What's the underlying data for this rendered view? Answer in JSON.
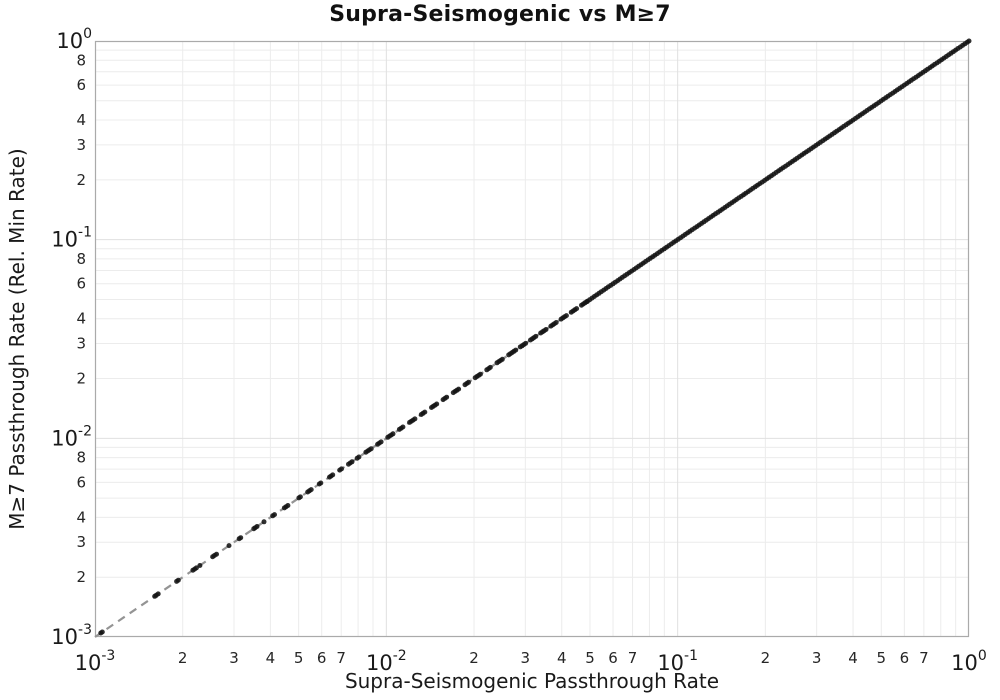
{
  "chart_data": {
    "type": "scatter",
    "title": "Supra-Seismogenic vs M≥7",
    "xlabel": "Supra-Seismogenic Passthrough Rate",
    "ylabel": "M≥7 Passthrough Rate (Rel. Min Rate)",
    "x_scale": "log",
    "y_scale": "log",
    "xlim": [
      0.001,
      1.0
    ],
    "ylim": [
      0.001,
      1.0
    ],
    "grid": true,
    "legend": "none",
    "relation": "y = x for every point (all markers lie on the 1:1 identity line)",
    "x_major_tick_labels": [
      "10^-3",
      "10^-2",
      "10^-1",
      "10^0"
    ],
    "y_major_tick_labels": [
      "10^0",
      "10^-1",
      "10^-2",
      "10^-3"
    ],
    "x_major_decades": [
      -3,
      -2,
      -1,
      0
    ],
    "y_major_decades": [
      0,
      -1,
      -2,
      -3
    ],
    "x_minor_labeled_subs": [
      2,
      3,
      4,
      5,
      6,
      7
    ],
    "y_minor_labeled_subs": [
      8,
      6,
      4,
      3,
      2
    ],
    "minor_grid_subs": [
      2,
      3,
      4,
      5,
      6,
      7,
      8,
      9
    ],
    "reference_line": {
      "type": "identity",
      "style": "dashed",
      "from": [
        0.001,
        0.001
      ],
      "to": [
        1.0,
        1.0
      ]
    },
    "marker": {
      "shape": "circle",
      "radius_px": 2.5
    },
    "points_x_log10_sparse": [
      -2.98,
      -2.975,
      -2.795,
      -2.79,
      -2.783,
      -2.72,
      -2.714,
      -2.664,
      -2.658,
      -2.652,
      -2.64,
      -2.596,
      -2.59,
      -2.583,
      -2.54,
      -2.505,
      -2.5,
      -2.455,
      -2.45,
      -2.444,
      -2.42,
      -2.39,
      -2.384,
      -2.35,
      -2.344,
      -2.338,
      -2.3,
      -2.295,
      -2.27,
      -2.264,
      -2.258,
      -2.23,
      -2.225,
      -2.195,
      -2.19,
      -2.184,
      -2.16,
      -2.154,
      -2.13,
      -2.124,
      -2.118,
      -2.1,
      -2.094,
      -2.07,
      -2.064,
      -2.058,
      -2.052,
      -2.03,
      -2.024,
      -2.018,
      -1.995,
      -1.989,
      -1.983,
      -1.977,
      -1.955,
      -1.949,
      -1.943,
      -1.92,
      -1.914,
      -1.908,
      -1.902,
      -1.88,
      -1.874,
      -1.868,
      -1.845,
      -1.839,
      -1.833,
      -1.827,
      -1.805,
      -1.799,
      -1.793,
      -1.77,
      -1.764,
      -1.758,
      -1.752,
      -1.73,
      -1.724,
      -1.718,
      -1.695,
      -1.689,
      -1.683,
      -1.677,
      -1.655,
      -1.649,
      -1.643,
      -1.62,
      -1.614,
      -1.608,
      -1.602,
      -1.58,
      -1.574,
      -1.568,
      -1.562,
      -1.556,
      -1.54,
      -1.534,
      -1.528,
      -1.522,
      -1.505,
      -1.499,
      -1.493,
      -1.487,
      -1.47,
      -1.464,
      -1.458,
      -1.452,
      -1.435,
      -1.429,
      -1.423,
      -1.417,
      -1.4,
      -1.394,
      -1.388,
      -1.382,
      -1.365,
      -1.359,
      -1.353,
      -1.347,
      -1.33,
      -1.324,
      -1.318,
      -1.312
    ],
    "points_x_log10_dense_run": {
      "start": -1.31,
      "stop": 0.0,
      "step": 0.008
    }
  },
  "colors": {
    "marker": "#141414",
    "reference_line": "#949494",
    "grid_minor": "#ececec",
    "grid_major": "#e0e0e0",
    "spine": "#aaaaaa",
    "tick_text": "#1a1a1a",
    "background": "#ffffff"
  }
}
